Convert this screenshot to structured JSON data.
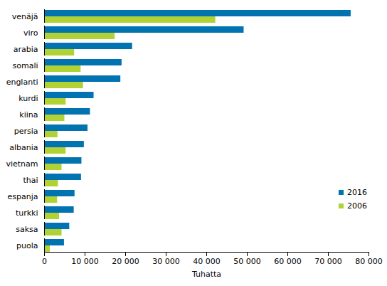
{
  "chart_data": {
    "type": "bar",
    "orientation": "horizontal",
    "categories": [
      "venäjä",
      "viro",
      "arabia",
      "somali",
      "englanti",
      "kurdi",
      "kiina",
      "persia",
      "albania",
      "vietnam",
      "thai",
      "espanja",
      "turkki",
      "saksa",
      "puola"
    ],
    "series": [
      {
        "name": "2016",
        "color": "#0073b0",
        "values": [
          75600,
          49200,
          21700,
          19100,
          18800,
          12200,
          11300,
          10700,
          9800,
          9200,
          9100,
          7500,
          7300,
          6200,
          4900
        ]
      },
      {
        "name": "2006",
        "color": "#b1d235",
        "values": [
          42200,
          17400,
          7400,
          9000,
          9600,
          5300,
          5000,
          3300,
          5300,
          4300,
          3400,
          3200,
          3700,
          4300,
          1400
        ]
      }
    ],
    "x_label": "Tuhatta",
    "xlim": [
      0,
      80000
    ],
    "xticks": [
      0,
      {
        "value": 10000,
        "label": "10 000"
      },
      {
        "value": 20000,
        "label": "20 000"
      },
      {
        "value": 30000,
        "label": "30 000"
      },
      {
        "value": 40000,
        "label": "40 000"
      },
      {
        "value": 50000,
        "label": "50 000"
      },
      {
        "value": 60000,
        "label": "60 000"
      },
      {
        "value": 70000,
        "label": "70 000"
      },
      {
        "value": 80000,
        "label": "80 000"
      }
    ],
    "grid": false,
    "legend": "right"
  }
}
